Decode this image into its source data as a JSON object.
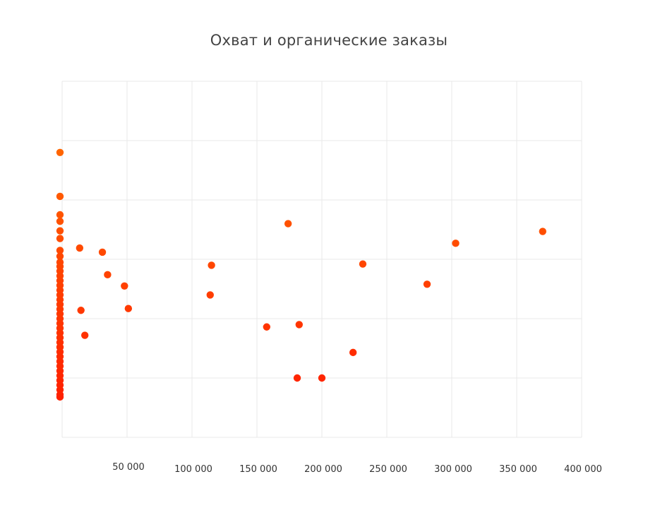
{
  "chart_data": {
    "type": "scatter",
    "title": "Охват и органические заказы",
    "xlabel": "",
    "ylabel": "",
    "xlim": [
      0,
      400000
    ],
    "x_ticks": [
      {
        "value": 50000,
        "label": "50 000"
      },
      {
        "value": 100000,
        "label": "100 000"
      },
      {
        "value": 150000,
        "label": "150 000"
      },
      {
        "value": 200000,
        "label": "200 000"
      },
      {
        "value": 250000,
        "label": "250 000"
      },
      {
        "value": 300000,
        "label": "300 000"
      },
      {
        "value": 350000,
        "label": "350 000"
      },
      {
        "value": 400000,
        "label": "400 000"
      }
    ],
    "ylim": [
      0,
      6
    ],
    "y_grid": [
      0,
      1,
      2,
      3,
      4,
      5,
      6
    ],
    "y_tick_labels_visible": false,
    "grid": true,
    "legend": "none",
    "colors": {
      "point_top": "#ff6a00",
      "point_bottom": "#ff1a00",
      "grid": "#e8e8e8"
    },
    "points": [
      {
        "x": 0,
        "y": 4.8
      },
      {
        "x": 0,
        "y": 4.06
      },
      {
        "x": 0,
        "y": 3.75
      },
      {
        "x": 0,
        "y": 3.64
      },
      {
        "x": 0,
        "y": 3.48
      },
      {
        "x": 0,
        "y": 3.35
      },
      {
        "x": 0,
        "y": 3.15
      },
      {
        "x": 0,
        "y": 3.05
      },
      {
        "x": 0,
        "y": 2.95
      },
      {
        "x": 0,
        "y": 2.88
      },
      {
        "x": 0,
        "y": 2.8
      },
      {
        "x": 0,
        "y": 2.72
      },
      {
        "x": 0,
        "y": 2.64
      },
      {
        "x": 0,
        "y": 2.56
      },
      {
        "x": 0,
        "y": 2.48
      },
      {
        "x": 0,
        "y": 2.4
      },
      {
        "x": 0,
        "y": 2.32
      },
      {
        "x": 0,
        "y": 2.24
      },
      {
        "x": 0,
        "y": 2.16
      },
      {
        "x": 0,
        "y": 2.08
      },
      {
        "x": 0,
        "y": 2.0
      },
      {
        "x": 0,
        "y": 1.92
      },
      {
        "x": 0,
        "y": 1.84
      },
      {
        "x": 0,
        "y": 1.76
      },
      {
        "x": 0,
        "y": 1.68
      },
      {
        "x": 0,
        "y": 1.6
      },
      {
        "x": 0,
        "y": 1.52
      },
      {
        "x": 0,
        "y": 1.44
      },
      {
        "x": 0,
        "y": 1.36
      },
      {
        "x": 0,
        "y": 1.28
      },
      {
        "x": 0,
        "y": 1.2
      },
      {
        "x": 0,
        "y": 1.12
      },
      {
        "x": 0,
        "y": 1.04
      },
      {
        "x": 0,
        "y": 0.96
      },
      {
        "x": 0,
        "y": 0.88
      },
      {
        "x": 0,
        "y": 0.8
      },
      {
        "x": 0,
        "y": 0.72
      },
      {
        "x": 0,
        "y": 0.68
      },
      {
        "x": 13500,
        "y": 3.19
      },
      {
        "x": 31000,
        "y": 3.12
      },
      {
        "x": 35000,
        "y": 2.74
      },
      {
        "x": 48000,
        "y": 2.55
      },
      {
        "x": 51000,
        "y": 2.17
      },
      {
        "x": 14500,
        "y": 2.14
      },
      {
        "x": 17500,
        "y": 1.72
      },
      {
        "x": 114000,
        "y": 2.4
      },
      {
        "x": 115000,
        "y": 2.9
      },
      {
        "x": 157500,
        "y": 1.86
      },
      {
        "x": 174000,
        "y": 3.6
      },
      {
        "x": 181000,
        "y": 1.0
      },
      {
        "x": 182500,
        "y": 1.9
      },
      {
        "x": 200000,
        "y": 1.0
      },
      {
        "x": 224000,
        "y": 1.43
      },
      {
        "x": 231500,
        "y": 2.92
      },
      {
        "x": 281000,
        "y": 2.58
      },
      {
        "x": 303000,
        "y": 3.27
      },
      {
        "x": 370000,
        "y": 3.47
      }
    ]
  }
}
